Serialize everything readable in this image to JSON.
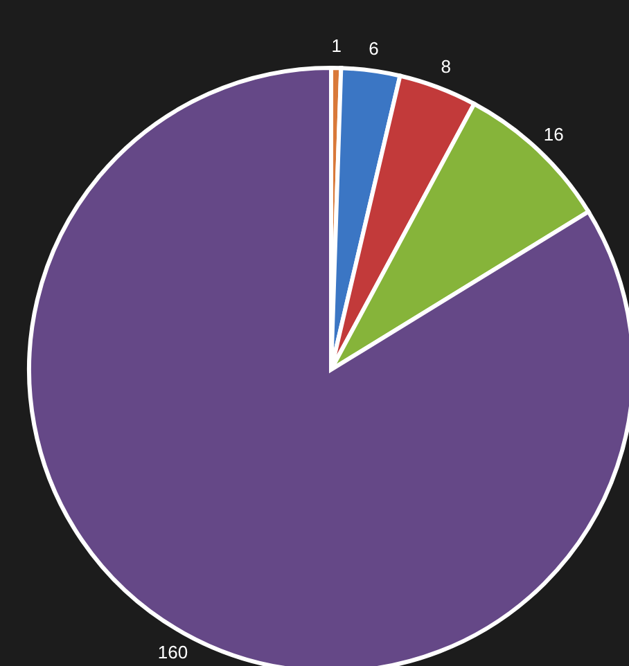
{
  "chart_data": {
    "type": "pie",
    "categories": [
      null,
      null,
      null,
      null,
      null
    ],
    "values": [
      1,
      6,
      8,
      16,
      160
    ],
    "colors": [
      "#d9793a",
      "#3b76c4",
      "#c23a3a",
      "#86b43a",
      "#654887"
    ],
    "data_labels": true
  }
}
